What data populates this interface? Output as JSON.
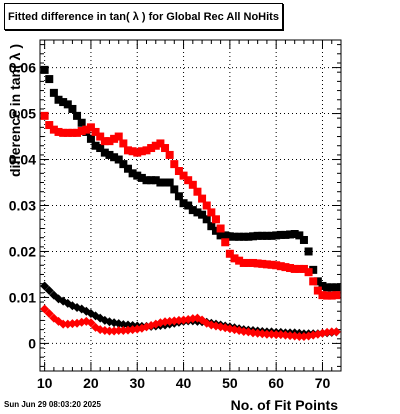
{
  "page": {
    "title": "Fitted difference in tan( λ ) for Global Rec All NoHits",
    "date": "Sun Jun 29 08:03:20 2025"
  },
  "chart_data": {
    "type": "scatter",
    "title": "Fitted difference in tan( λ ) for Global Rec All NoHits",
    "xlabel": "No. of Fit Points",
    "ylabel": "difference in tan( λ )",
    "xlim": [
      9,
      74
    ],
    "ylim": [
      -0.006,
      0.066
    ],
    "grid": true,
    "x_ticks": [
      10,
      20,
      30,
      40,
      50,
      60,
      70
    ],
    "y_ticks": [
      0,
      0.01,
      0.02,
      0.03,
      0.04,
      0.05,
      0.06
    ],
    "y_tick_labels": [
      "0",
      "0.01",
      "0.02",
      "0.03",
      "0.04",
      "0.05",
      "0.06"
    ],
    "series": [
      {
        "color": "#000000",
        "marker": "square",
        "points": [
          [
            10,
            0.0595
          ],
          [
            11,
            0.0575
          ],
          [
            12,
            0.0545
          ],
          [
            13,
            0.053
          ],
          [
            14,
            0.0525
          ],
          [
            15,
            0.052
          ],
          [
            16,
            0.051
          ],
          [
            17,
            0.0495
          ],
          [
            18,
            0.048
          ],
          [
            19,
            0.046
          ],
          [
            20,
            0.0445
          ],
          [
            21,
            0.043
          ],
          [
            22,
            0.0425
          ],
          [
            23,
            0.0415
          ],
          [
            24,
            0.041
          ],
          [
            25,
            0.0405
          ],
          [
            26,
            0.04
          ],
          [
            27,
            0.039
          ],
          [
            28,
            0.038
          ],
          [
            29,
            0.037
          ],
          [
            30,
            0.0365
          ],
          [
            31,
            0.036
          ],
          [
            32,
            0.0355
          ],
          [
            33,
            0.0355
          ],
          [
            34,
            0.0355
          ],
          [
            35,
            0.035
          ],
          [
            36,
            0.035
          ],
          [
            37,
            0.035
          ],
          [
            38,
            0.0335
          ],
          [
            39,
            0.032
          ],
          [
            40,
            0.0305
          ],
          [
            41,
            0.03
          ],
          [
            42,
            0.029
          ],
          [
            43,
            0.0285
          ],
          [
            44,
            0.028
          ],
          [
            45,
            0.027
          ],
          [
            46,
            0.0255
          ],
          [
            47,
            0.0245
          ],
          [
            48,
            0.0235
          ],
          [
            49,
            0.0235
          ],
          [
            50,
            0.0233
          ],
          [
            51,
            0.0232
          ],
          [
            52,
            0.0232
          ],
          [
            53,
            0.0232
          ],
          [
            54,
            0.0232
          ],
          [
            55,
            0.0233
          ],
          [
            56,
            0.0234
          ],
          [
            57,
            0.0234
          ],
          [
            58,
            0.0234
          ],
          [
            59,
            0.0234
          ],
          [
            60,
            0.0235
          ],
          [
            61,
            0.0236
          ],
          [
            62,
            0.0236
          ],
          [
            63,
            0.0237
          ],
          [
            64,
            0.0238
          ],
          [
            65,
            0.0235
          ],
          [
            66,
            0.0225
          ],
          [
            67,
            0.02
          ],
          [
            68,
            0.016
          ],
          [
            69,
            0.0135
          ],
          [
            70,
            0.0125
          ],
          [
            71,
            0.0122
          ],
          [
            72,
            0.0122
          ],
          [
            73,
            0.0122
          ]
        ]
      },
      {
        "color": "#ff0000",
        "marker": "square",
        "points": [
          [
            10,
            0.0495
          ],
          [
            11,
            0.0475
          ],
          [
            12,
            0.0465
          ],
          [
            13,
            0.046
          ],
          [
            14,
            0.0458
          ],
          [
            15,
            0.0458
          ],
          [
            16,
            0.0458
          ],
          [
            17,
            0.0458
          ],
          [
            18,
            0.0462
          ],
          [
            19,
            0.0465
          ],
          [
            20,
            0.047
          ],
          [
            21,
            0.046
          ],
          [
            22,
            0.045
          ],
          [
            23,
            0.044
          ],
          [
            24,
            0.044
          ],
          [
            25,
            0.0445
          ],
          [
            26,
            0.045
          ],
          [
            27,
            0.0435
          ],
          [
            28,
            0.042
          ],
          [
            29,
            0.0418
          ],
          [
            30,
            0.0415
          ],
          [
            31,
            0.0418
          ],
          [
            32,
            0.042
          ],
          [
            33,
            0.0425
          ],
          [
            34,
            0.043
          ],
          [
            35,
            0.0435
          ],
          [
            36,
            0.0425
          ],
          [
            37,
            0.041
          ],
          [
            38,
            0.039
          ],
          [
            39,
            0.0375
          ],
          [
            40,
            0.0365
          ],
          [
            41,
            0.0355
          ],
          [
            42,
            0.0345
          ],
          [
            43,
            0.033
          ],
          [
            44,
            0.0315
          ],
          [
            45,
            0.03
          ],
          [
            46,
            0.0285
          ],
          [
            47,
            0.027
          ],
          [
            48,
            0.025
          ],
          [
            49,
            0.022
          ],
          [
            50,
            0.0195
          ],
          [
            51,
            0.0185
          ],
          [
            52,
            0.018
          ],
          [
            53,
            0.0175
          ],
          [
            54,
            0.0175
          ],
          [
            55,
            0.0175
          ],
          [
            56,
            0.0174
          ],
          [
            57,
            0.0173
          ],
          [
            58,
            0.0172
          ],
          [
            59,
            0.0171
          ],
          [
            60,
            0.017
          ],
          [
            61,
            0.0168
          ],
          [
            62,
            0.0166
          ],
          [
            63,
            0.0164
          ],
          [
            64,
            0.0162
          ],
          [
            65,
            0.0162
          ],
          [
            66,
            0.0162
          ],
          [
            67,
            0.0155
          ],
          [
            68,
            0.0135
          ],
          [
            69,
            0.0115
          ],
          [
            70,
            0.0105
          ],
          [
            71,
            0.0104
          ],
          [
            72,
            0.0104
          ],
          [
            73,
            0.0105
          ]
        ]
      },
      {
        "color": "#000000",
        "marker": "diamond",
        "points": [
          [
            10,
            0.0125
          ],
          [
            11,
            0.0115
          ],
          [
            12,
            0.0105
          ],
          [
            13,
            0.0097
          ],
          [
            14,
            0.0092
          ],
          [
            15,
            0.0087
          ],
          [
            16,
            0.0082
          ],
          [
            17,
            0.0078
          ],
          [
            18,
            0.0075
          ],
          [
            19,
            0.007
          ],
          [
            20,
            0.0065
          ],
          [
            21,
            0.006
          ],
          [
            22,
            0.0055
          ],
          [
            23,
            0.005
          ],
          [
            24,
            0.0047
          ],
          [
            25,
            0.0045
          ],
          [
            26,
            0.0043
          ],
          [
            27,
            0.0041
          ],
          [
            28,
            0.004
          ],
          [
            29,
            0.0039
          ],
          [
            30,
            0.0038
          ],
          [
            31,
            0.0037
          ],
          [
            32,
            0.0037
          ],
          [
            33,
            0.0037
          ],
          [
            34,
            0.0038
          ],
          [
            35,
            0.0039
          ],
          [
            36,
            0.004
          ],
          [
            37,
            0.0042
          ],
          [
            38,
            0.0044
          ],
          [
            39,
            0.0046
          ],
          [
            40,
            0.0048
          ],
          [
            41,
            0.0049
          ],
          [
            42,
            0.0049
          ],
          [
            43,
            0.0048
          ],
          [
            44,
            0.0047
          ],
          [
            45,
            0.0046
          ],
          [
            46,
            0.0044
          ],
          [
            47,
            0.0042
          ],
          [
            48,
            0.004
          ],
          [
            49,
            0.0038
          ],
          [
            50,
            0.0036
          ],
          [
            51,
            0.0034
          ],
          [
            52,
            0.0032
          ],
          [
            53,
            0.003
          ],
          [
            54,
            0.0029
          ],
          [
            55,
            0.0028
          ],
          [
            56,
            0.0027
          ],
          [
            57,
            0.0026
          ],
          [
            58,
            0.0025
          ],
          [
            59,
            0.0025
          ],
          [
            60,
            0.0024
          ],
          [
            61,
            0.0024
          ],
          [
            62,
            0.0023
          ],
          [
            63,
            0.0023
          ],
          [
            64,
            0.0023
          ],
          [
            65,
            0.0022
          ],
          [
            66,
            0.0021
          ],
          [
            67,
            0.0021
          ],
          [
            68,
            0.0021
          ],
          [
            69,
            0.0021
          ],
          [
            70,
            0.0022
          ],
          [
            71,
            0.0023
          ],
          [
            72,
            0.0024
          ],
          [
            73,
            0.0025
          ]
        ]
      },
      {
        "color": "#ff0000",
        "marker": "diamond",
        "points": [
          [
            10,
            0.0075
          ],
          [
            11,
            0.0065
          ],
          [
            12,
            0.0055
          ],
          [
            13,
            0.0048
          ],
          [
            14,
            0.0042
          ],
          [
            15,
            0.0042
          ],
          [
            16,
            0.0043
          ],
          [
            17,
            0.0044
          ],
          [
            18,
            0.0046
          ],
          [
            19,
            0.0048
          ],
          [
            20,
            0.0045
          ],
          [
            21,
            0.0035
          ],
          [
            22,
            0.003
          ],
          [
            23,
            0.0028
          ],
          [
            24,
            0.0027
          ],
          [
            25,
            0.0027
          ],
          [
            26,
            0.0028
          ],
          [
            27,
            0.0028
          ],
          [
            28,
            0.0029
          ],
          [
            29,
            0.003
          ],
          [
            30,
            0.0031
          ],
          [
            31,
            0.0033
          ],
          [
            32,
            0.0036
          ],
          [
            33,
            0.0039
          ],
          [
            34,
            0.0042
          ],
          [
            35,
            0.0045
          ],
          [
            36,
            0.0047
          ],
          [
            37,
            0.0048
          ],
          [
            38,
            0.0049
          ],
          [
            39,
            0.005
          ],
          [
            40,
            0.0051
          ],
          [
            41,
            0.0052
          ],
          [
            42,
            0.0054
          ],
          [
            43,
            0.0055
          ],
          [
            44,
            0.0051
          ],
          [
            45,
            0.0044
          ],
          [
            46,
            0.004
          ],
          [
            47,
            0.0038
          ],
          [
            48,
            0.0036
          ],
          [
            49,
            0.0034
          ],
          [
            50,
            0.0032
          ],
          [
            51,
            0.003
          ],
          [
            52,
            0.0028
          ],
          [
            53,
            0.0026
          ],
          [
            54,
            0.0025
          ],
          [
            55,
            0.0023
          ],
          [
            56,
            0.0022
          ],
          [
            57,
            0.0021
          ],
          [
            58,
            0.002
          ],
          [
            59,
            0.002
          ],
          [
            60,
            0.0019
          ],
          [
            61,
            0.0019
          ],
          [
            62,
            0.0018
          ],
          [
            63,
            0.0017
          ],
          [
            64,
            0.0016
          ],
          [
            65,
            0.0015
          ],
          [
            66,
            0.0015
          ],
          [
            67,
            0.0016
          ],
          [
            68,
            0.0018
          ],
          [
            69,
            0.002
          ],
          [
            70,
            0.0022
          ],
          [
            71,
            0.0024
          ],
          [
            72,
            0.0025
          ],
          [
            73,
            0.0025
          ]
        ]
      }
    ]
  }
}
